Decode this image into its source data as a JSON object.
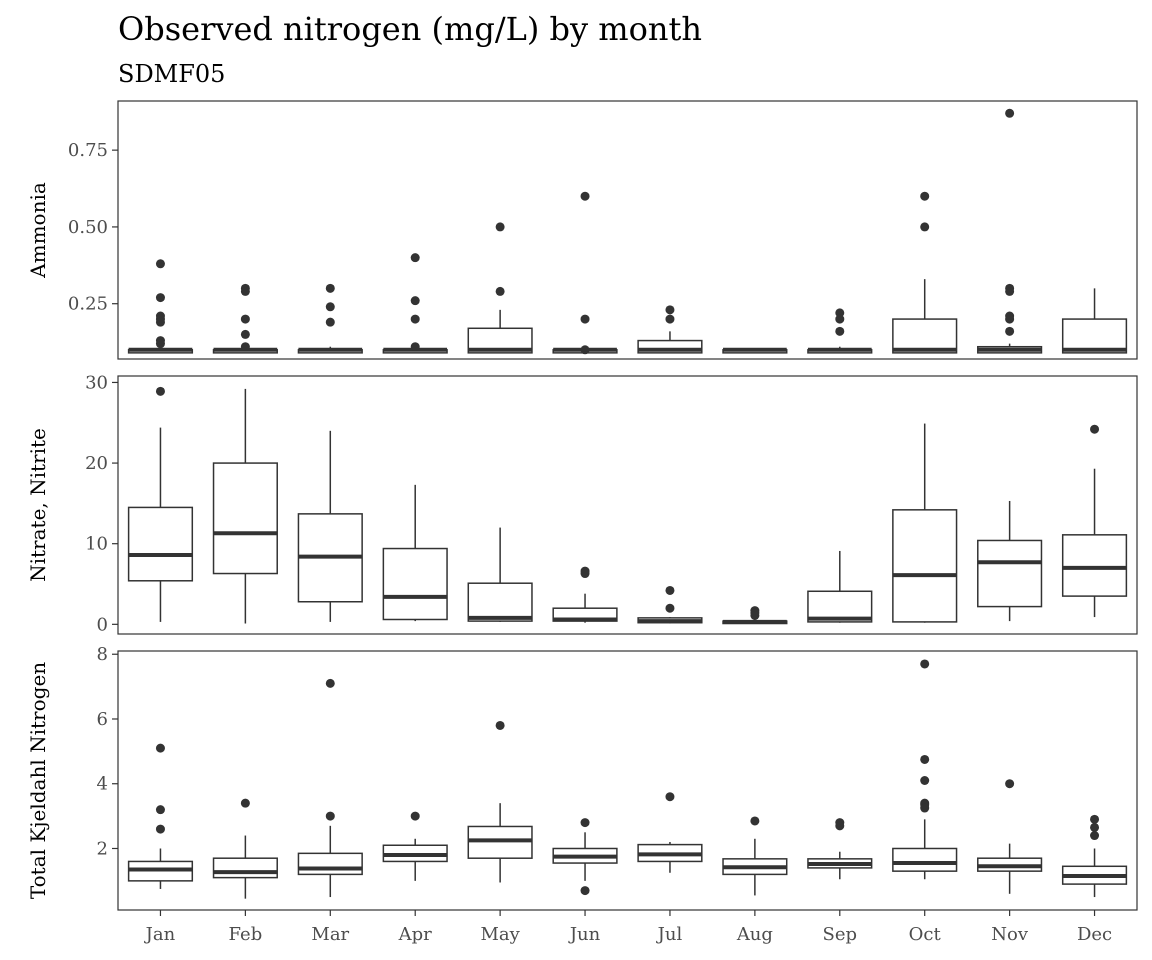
{
  "chart_data": {
    "type": "boxplot",
    "title": "Observed nitrogen (mg/L) by month",
    "subtitle": "SDMF05",
    "xlabel": "",
    "categories": [
      "Jan",
      "Feb",
      "Mar",
      "Apr",
      "May",
      "Jun",
      "Jul",
      "Aug",
      "Sep",
      "Oct",
      "Nov",
      "Dec"
    ],
    "panels": [
      {
        "name": "ammonia",
        "ylabel": "Ammonia",
        "ylim": [
          0.07,
          0.91
        ],
        "yticks": [
          0.25,
          0.5,
          0.75
        ],
        "ytick_labels": [
          "0.25",
          "0.50",
          "0.75"
        ],
        "boxes": [
          {
            "min": 0.09,
            "q1": 0.09,
            "median": 0.1,
            "q3": 0.1,
            "max": 0.11,
            "outliers": [
              0.38,
              0.27,
              0.21,
              0.2,
              0.19,
              0.13,
              0.12
            ]
          },
          {
            "min": 0.09,
            "q1": 0.09,
            "median": 0.1,
            "q3": 0.1,
            "max": 0.11,
            "outliers": [
              0.3,
              0.29,
              0.2,
              0.15,
              0.11
            ]
          },
          {
            "min": 0.09,
            "q1": 0.09,
            "median": 0.1,
            "q3": 0.1,
            "max": 0.11,
            "outliers": [
              0.3,
              0.24,
              0.19
            ]
          },
          {
            "min": 0.09,
            "q1": 0.09,
            "median": 0.1,
            "q3": 0.1,
            "max": 0.11,
            "outliers": [
              0.4,
              0.26,
              0.2,
              0.11
            ]
          },
          {
            "min": 0.09,
            "q1": 0.09,
            "median": 0.1,
            "q3": 0.17,
            "max": 0.23,
            "outliers": [
              0.5,
              0.29
            ]
          },
          {
            "min": 0.09,
            "q1": 0.09,
            "median": 0.1,
            "q3": 0.1,
            "max": 0.11,
            "outliers": [
              0.6,
              0.2,
              0.1
            ]
          },
          {
            "min": 0.09,
            "q1": 0.09,
            "median": 0.1,
            "q3": 0.13,
            "max": 0.16,
            "outliers": [
              0.23,
              0.2
            ]
          },
          {
            "min": 0.09,
            "q1": 0.09,
            "median": 0.1,
            "q3": 0.1,
            "max": 0.1,
            "outliers": []
          },
          {
            "min": 0.09,
            "q1": 0.09,
            "median": 0.1,
            "q3": 0.1,
            "max": 0.11,
            "outliers": [
              0.22,
              0.2,
              0.16
            ]
          },
          {
            "min": 0.09,
            "q1": 0.09,
            "median": 0.1,
            "q3": 0.2,
            "max": 0.33,
            "outliers": [
              0.6,
              0.5
            ]
          },
          {
            "min": 0.09,
            "q1": 0.09,
            "median": 0.1,
            "q3": 0.11,
            "max": 0.12,
            "outliers": [
              0.87,
              0.3,
              0.29,
              0.21,
              0.2,
              0.16
            ]
          },
          {
            "min": 0.09,
            "q1": 0.09,
            "median": 0.1,
            "q3": 0.2,
            "max": 0.3,
            "outliers": []
          }
        ]
      },
      {
        "name": "nitrate-nitrite",
        "ylabel": "Nitrate, Nitrite",
        "ylim": [
          -1.2,
          30.8
        ],
        "yticks": [
          0,
          10,
          20,
          30
        ],
        "ytick_labels": [
          "0",
          "10",
          "20",
          "30"
        ],
        "boxes": [
          {
            "min": 0.3,
            "q1": 5.4,
            "median": 8.6,
            "q3": 14.5,
            "max": 24.4,
            "outliers": [
              28.9
            ]
          },
          {
            "min": 0.1,
            "q1": 6.3,
            "median": 11.3,
            "q3": 20.0,
            "max": 29.2,
            "outliers": []
          },
          {
            "min": 0.3,
            "q1": 2.8,
            "median": 8.4,
            "q3": 13.7,
            "max": 24.0,
            "outliers": []
          },
          {
            "min": 0.4,
            "q1": 0.6,
            "median": 3.4,
            "q3": 9.4,
            "max": 17.3,
            "outliers": []
          },
          {
            "min": 0.3,
            "q1": 0.4,
            "median": 0.8,
            "q3": 5.1,
            "max": 12.0,
            "outliers": []
          },
          {
            "min": 0.2,
            "q1": 0.4,
            "median": 0.6,
            "q3": 2.0,
            "max": 3.8,
            "outliers": [
              6.6,
              6.3
            ]
          },
          {
            "min": 0.1,
            "q1": 0.2,
            "median": 0.4,
            "q3": 0.8,
            "max": 0.9,
            "outliers": [
              4.2,
              2.0
            ]
          },
          {
            "min": 0.1,
            "q1": 0.1,
            "median": 0.3,
            "q3": 0.4,
            "max": 0.8,
            "outliers": [
              1.7,
              1.4,
              1.1
            ]
          },
          {
            "min": 0.2,
            "q1": 0.3,
            "median": 0.7,
            "q3": 4.1,
            "max": 9.1,
            "outliers": []
          },
          {
            "min": 0.2,
            "q1": 0.3,
            "median": 6.1,
            "q3": 14.2,
            "max": 24.9,
            "outliers": []
          },
          {
            "min": 0.4,
            "q1": 2.2,
            "median": 7.7,
            "q3": 10.4,
            "max": 15.3,
            "outliers": []
          },
          {
            "min": 0.9,
            "q1": 3.5,
            "median": 7.0,
            "q3": 11.1,
            "max": 19.3,
            "outliers": [
              24.2
            ]
          }
        ]
      },
      {
        "name": "total-kjeldahl-nitrogen",
        "ylabel": "Total Kjeldahl Nitrogen",
        "ylim": [
          0.1,
          8.1
        ],
        "yticks": [
          2,
          4,
          6,
          8
        ],
        "ytick_labels": [
          "2",
          "4",
          "6",
          "8"
        ],
        "boxes": [
          {
            "min": 0.75,
            "q1": 1.0,
            "median": 1.35,
            "q3": 1.6,
            "max": 2.0,
            "outliers": [
              5.1,
              3.2,
              2.6
            ]
          },
          {
            "min": 0.45,
            "q1": 1.1,
            "median": 1.27,
            "q3": 1.7,
            "max": 2.4,
            "outliers": [
              3.4
            ]
          },
          {
            "min": 0.5,
            "q1": 1.2,
            "median": 1.38,
            "q3": 1.85,
            "max": 2.7,
            "outliers": [
              7.1,
              3.0
            ]
          },
          {
            "min": 1.0,
            "q1": 1.6,
            "median": 1.8,
            "q3": 2.1,
            "max": 2.3,
            "outliers": [
              3.0
            ]
          },
          {
            "min": 0.95,
            "q1": 1.7,
            "median": 2.25,
            "q3": 2.68,
            "max": 3.4,
            "outliers": [
              5.8
            ]
          },
          {
            "min": 1.0,
            "q1": 1.55,
            "median": 1.75,
            "q3": 2.0,
            "max": 2.5,
            "outliers": [
              2.8,
              0.7
            ]
          },
          {
            "min": 1.25,
            "q1": 1.6,
            "median": 1.82,
            "q3": 2.12,
            "max": 2.2,
            "outliers": [
              3.6
            ]
          },
          {
            "min": 0.55,
            "q1": 1.2,
            "median": 1.42,
            "q3": 1.68,
            "max": 2.3,
            "outliers": [
              2.85
            ]
          },
          {
            "min": 1.05,
            "q1": 1.4,
            "median": 1.52,
            "q3": 1.68,
            "max": 1.9,
            "outliers": [
              2.8,
              2.7
            ]
          },
          {
            "min": 1.05,
            "q1": 1.3,
            "median": 1.55,
            "q3": 2.0,
            "max": 2.9,
            "outliers": [
              7.7,
              4.75,
              4.1,
              3.4,
              3.35,
              3.25
            ]
          },
          {
            "min": 0.6,
            "q1": 1.3,
            "median": 1.45,
            "q3": 1.7,
            "max": 2.15,
            "outliers": [
              4.0
            ]
          },
          {
            "min": 0.5,
            "q1": 0.9,
            "median": 1.15,
            "q3": 1.45,
            "max": 2.0,
            "outliers": [
              2.9,
              2.65,
              2.4
            ]
          }
        ]
      }
    ]
  }
}
